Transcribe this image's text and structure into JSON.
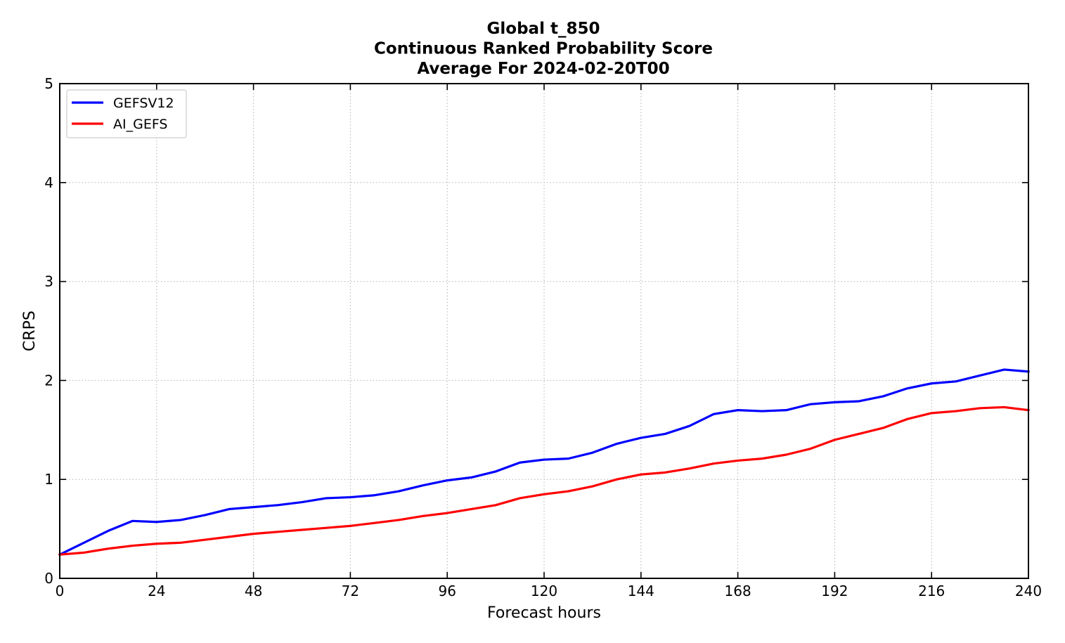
{
  "chart_data": {
    "type": "line",
    "title": [
      "Global t_850",
      "Continuous Ranked Probability Score",
      "Average For 2024-02-20T00"
    ],
    "xlabel": "Forecast hours",
    "ylabel": "CRPS",
    "xlim": [
      0,
      240
    ],
    "ylim": [
      0,
      5
    ],
    "xticks": [
      "0",
      "24",
      "48",
      "72",
      "96",
      "120",
      "144",
      "168",
      "192",
      "216",
      "240"
    ],
    "yticks": [
      "0",
      "1",
      "2",
      "3",
      "4",
      "5"
    ],
    "grid": true,
    "legend_position": "upper-left",
    "x": [
      0,
      6,
      12,
      18,
      24,
      30,
      36,
      42,
      48,
      54,
      60,
      66,
      72,
      78,
      84,
      90,
      96,
      102,
      108,
      114,
      120,
      126,
      132,
      138,
      144,
      150,
      156,
      162,
      168,
      174,
      180,
      186,
      192,
      198,
      204,
      210,
      216,
      222,
      228,
      234,
      240
    ],
    "series": [
      {
        "name": "GEFSV12",
        "color": "#0000ff",
        "values": [
          0.24,
          0.36,
          0.48,
          0.58,
          0.57,
          0.59,
          0.64,
          0.7,
          0.72,
          0.74,
          0.77,
          0.81,
          0.82,
          0.84,
          0.88,
          0.94,
          0.99,
          1.02,
          1.08,
          1.17,
          1.2,
          1.21,
          1.27,
          1.36,
          1.42,
          1.46,
          1.54,
          1.66,
          1.7,
          1.69,
          1.7,
          1.76,
          1.78,
          1.79,
          1.84,
          1.92,
          1.97,
          1.99,
          2.05,
          2.11,
          2.09
        ]
      },
      {
        "name": "AI_GEFS",
        "color": "#ff0000",
        "values": [
          0.24,
          0.26,
          0.3,
          0.33,
          0.35,
          0.36,
          0.39,
          0.42,
          0.45,
          0.47,
          0.49,
          0.51,
          0.53,
          0.56,
          0.59,
          0.63,
          0.66,
          0.7,
          0.74,
          0.81,
          0.85,
          0.88,
          0.93,
          1.0,
          1.05,
          1.07,
          1.11,
          1.16,
          1.19,
          1.21,
          1.25,
          1.31,
          1.4,
          1.46,
          1.52,
          1.61,
          1.67,
          1.69,
          1.72,
          1.73,
          1.7
        ]
      }
    ]
  }
}
